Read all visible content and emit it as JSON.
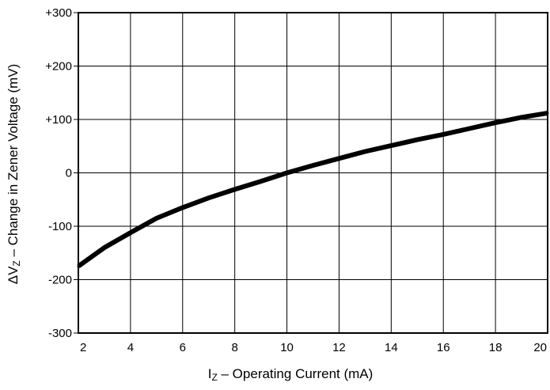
{
  "chart_data": {
    "type": "line",
    "title": "",
    "xlabel": {
      "symbol": "I",
      "subscript": "Z",
      "text": " – Operating Current (mA)"
    },
    "ylabel": {
      "symbol": "ΔV",
      "subscript": "Z",
      "text": " – Change in Zener Voltage (mV)"
    },
    "xlim": [
      2,
      20
    ],
    "ylim": [
      -300,
      300
    ],
    "x_ticks": [
      2,
      4,
      6,
      8,
      10,
      12,
      14,
      16,
      18,
      20
    ],
    "x_tick_labels": [
      "2",
      "4",
      "6",
      "8",
      "10",
      "12",
      "14",
      "16",
      "18",
      "20"
    ],
    "y_ticks": [
      300,
      200,
      100,
      0,
      -100,
      -200,
      -300
    ],
    "y_tick_labels": [
      "+300",
      "+200",
      "+100",
      "0",
      "-100",
      "-200",
      "-300"
    ],
    "grid": true,
    "series": [
      {
        "x": [
          2,
          3,
          4,
          5,
          6,
          7,
          8,
          9,
          10,
          11,
          12,
          13,
          14,
          15,
          16,
          17,
          18,
          19,
          20
        ],
        "y": [
          -175,
          -140,
          -112,
          -85,
          -65,
          -47,
          -31,
          -16,
          0,
          14,
          27,
          40,
          51,
          62,
          72,
          83,
          94,
          104,
          112
        ]
      }
    ],
    "line_color": "#000000"
  }
}
